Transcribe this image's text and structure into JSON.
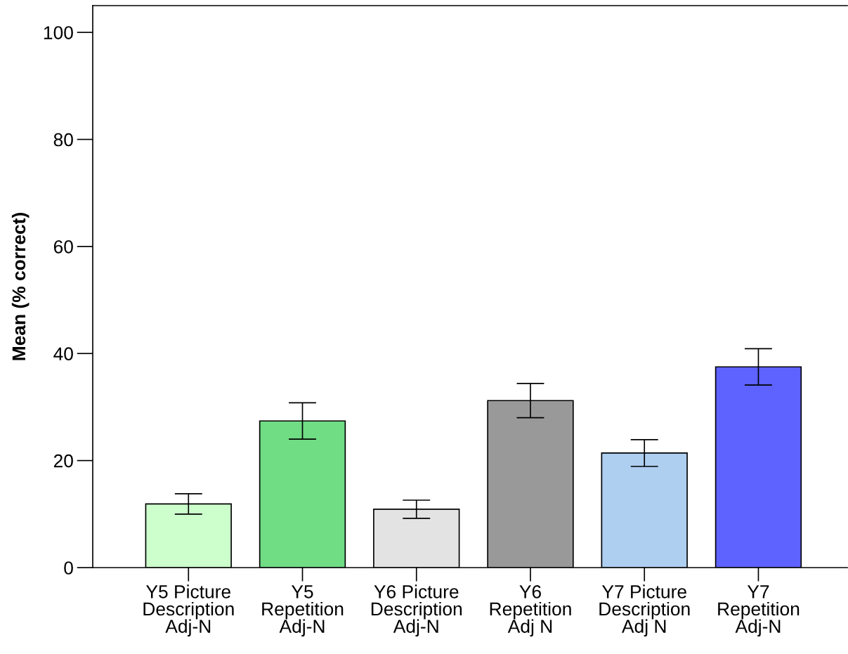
{
  "chart_data": {
    "type": "bar",
    "ylabel": "Mean (% correct)",
    "categories": [
      "Y5 Picture\nDescription\nAdj-N",
      "Y5\nRepetition\nAdj-N",
      "Y6 Picture\nDescription\nAdj-N",
      "Y6\nRepetition\nAdj N",
      "Y7 Picture\nDescription\nAdj N",
      "Y7\nRepetition\nAdj-N"
    ],
    "values": [
      11.9,
      27.4,
      10.9,
      31.2,
      21.4,
      37.5
    ],
    "errors": [
      1.9,
      3.4,
      1.7,
      3.2,
      2.5,
      3.4
    ],
    "colors": [
      "#ccffcc",
      "#70dc84",
      "#e3e3e3",
      "#999999",
      "#aecff0",
      "#5e62ff"
    ],
    "ylim": [
      0,
      105
    ],
    "yticks": [
      0,
      20,
      40,
      60,
      80,
      100
    ],
    "grid": false
  }
}
